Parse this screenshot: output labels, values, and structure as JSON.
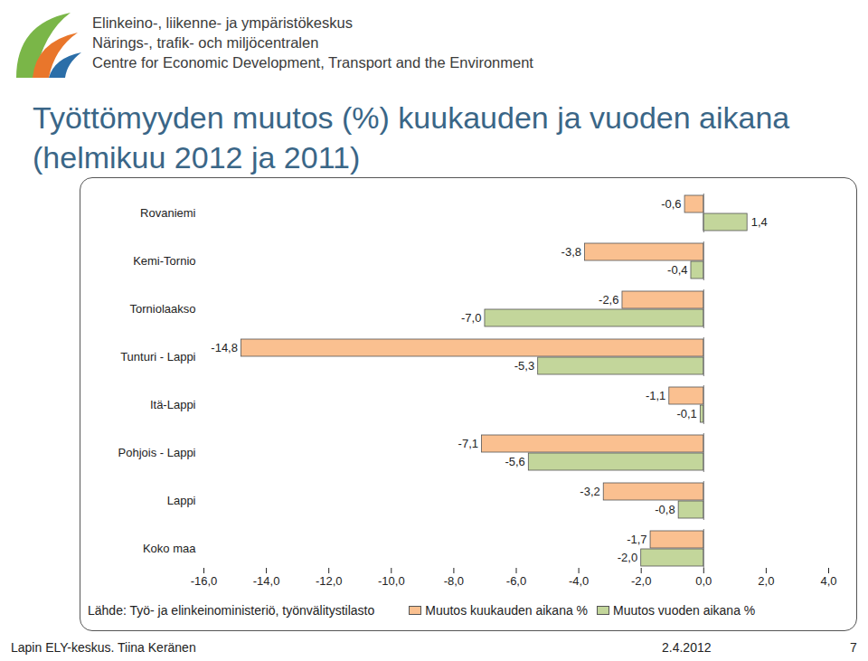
{
  "header": {
    "organization": [
      "Elinkeino-, liikenne- ja ympäristökeskus",
      "Närings-, trafik- och miljöcentralen",
      "Centre for Economic Development, Transport and the Environment"
    ]
  },
  "footer": {
    "left": "Lapin ELY-keskus. Tiina Keränen",
    "date": "2.4.2012",
    "page": "7"
  },
  "chart_data": {
    "type": "bar",
    "orientation": "horizontal",
    "title": [
      "Työttömyyden muutos (%) kuukauden ja vuoden aikana",
      "(helmikuu 2012 ja 2011)"
    ],
    "source": "Lähde: Työ- ja elinkeinoministeriö, työnvälitystilasto",
    "categories": [
      "Rovaniemi",
      "Kemi-Tornio",
      "Torniolaakso",
      "Tunturi - Lappi",
      "Itä-Lappi",
      "Pohjois - Lappi",
      "Lappi",
      "Koko maa"
    ],
    "series": [
      {
        "name": "Muutos kuukauden aikana %",
        "color": "#fac090",
        "values": [
          -0.6,
          -3.8,
          -2.6,
          -14.8,
          -1.1,
          -7.1,
          -3.2,
          -1.7
        ],
        "value_labels": [
          "-0,6",
          "-3,8",
          "-2,6",
          "-14,8",
          "-1,1",
          "-7,1",
          "-3,2",
          "-1,7"
        ]
      },
      {
        "name": "Muutos vuoden aikana %",
        "color": "#c3d69b",
        "values": [
          1.4,
          -0.4,
          -7.0,
          -5.3,
          -0.1,
          -5.6,
          -0.8,
          -2.0
        ],
        "value_labels": [
          "1,4",
          "-0,4",
          "-7,0",
          "-5,3",
          "-0,1",
          "-5,6",
          "-0,8",
          "-2,0"
        ]
      }
    ],
    "xlim": [
      -16,
      4
    ],
    "xticks": [
      {
        "value": -16,
        "label": "-16,0"
      },
      {
        "value": -14,
        "label": "-14,0"
      },
      {
        "value": -12,
        "label": "-12,0"
      },
      {
        "value": -10,
        "label": "-10,0"
      },
      {
        "value": -8,
        "label": "-8,0"
      },
      {
        "value": -6,
        "label": "-6,0"
      },
      {
        "value": -4,
        "label": "-4,0"
      },
      {
        "value": -2,
        "label": "-2,0"
      },
      {
        "value": 0,
        "label": "0,0"
      },
      {
        "value": 2,
        "label": "2,0"
      },
      {
        "value": 4,
        "label": "4,0"
      }
    ],
    "grid": false,
    "data_labels": true,
    "legend": "bottom"
  }
}
